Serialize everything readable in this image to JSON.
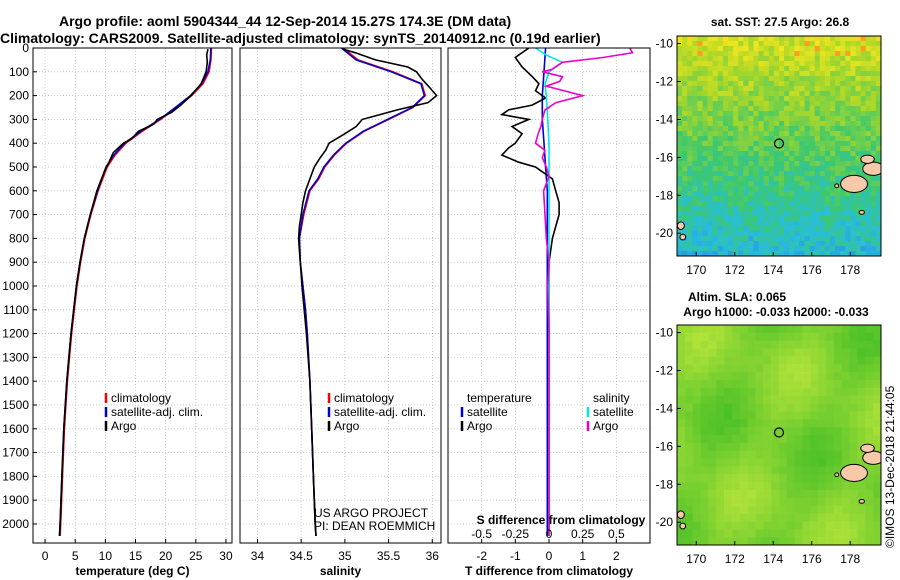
{
  "header": {
    "line1": "Argo profile: aoml 5904344_44 12-Sep-2014 15.27S 174.3E (DM data)",
    "line2": "Climatology: CARS2009. Satellite-adjusted climatology: synTS_20140912.nc (0.19d earlier)"
  },
  "colors": {
    "climatology": "#ff0000",
    "satellite": "#0000cc",
    "argo": "#000000",
    "salinity_satellite": "#00e5ee",
    "salinity_argo": "#ee00cc",
    "grid": "#b0b0b0"
  },
  "chart_data": [
    {
      "id": "temperature",
      "type": "line",
      "xlabel": "temperature (deg C)",
      "ylabel": "",
      "xlim": [
        -2,
        31
      ],
      "ylim": [
        2080,
        0
      ],
      "xticks": [
        0,
        5,
        10,
        15,
        20,
        25,
        30
      ],
      "yticks": [
        0,
        100,
        200,
        300,
        400,
        500,
        600,
        700,
        800,
        900,
        1000,
        1100,
        1200,
        1300,
        1400,
        1500,
        1600,
        1700,
        1800,
        1900,
        2000
      ],
      "legend": [
        "climatology",
        "satellite-adj. clim.",
        "Argo"
      ],
      "series": [
        {
          "name": "climatology",
          "color": "#ff0000",
          "depth": [
            0,
            50,
            100,
            150,
            200,
            250,
            300,
            350,
            400,
            450,
            500,
            600,
            700,
            800,
            900,
            1000,
            1200,
            1400,
            1600,
            1800,
            2000,
            2050
          ],
          "values": [
            27.6,
            27.5,
            27.2,
            26.2,
            24.3,
            21.8,
            19.2,
            16.1,
            13.4,
            11.6,
            10.3,
            8.8,
            7.6,
            6.6,
            5.9,
            5.3,
            4.4,
            3.7,
            3.2,
            2.9,
            2.6,
            2.5
          ]
        },
        {
          "name": "satellite-adj. clim.",
          "color": "#0000cc",
          "depth": [
            0,
            50,
            100,
            150,
            200,
            250,
            300,
            350,
            400,
            450,
            500,
            600,
            700,
            800,
            900,
            1000,
            1200,
            1400,
            1600,
            1800,
            2000,
            2050
          ],
          "values": [
            27.5,
            27.4,
            27.0,
            26.0,
            24.1,
            21.6,
            19.0,
            15.9,
            13.2,
            11.4,
            10.1,
            8.7,
            7.5,
            6.5,
            5.8,
            5.2,
            4.3,
            3.6,
            3.1,
            2.8,
            2.5,
            2.4
          ]
        },
        {
          "name": "Argo",
          "color": "#000000",
          "depth": [
            5,
            30,
            60,
            100,
            150,
            200,
            240,
            270,
            300,
            320,
            350,
            380,
            400,
            440,
            480,
            520,
            600,
            700,
            800,
            900,
            1000,
            1200,
            1400,
            1600,
            1800,
            2000,
            2050
          ],
          "values": [
            27.0,
            26.8,
            26.9,
            26.7,
            25.9,
            24.2,
            22.5,
            21.0,
            18.6,
            18.0,
            15.5,
            14.4,
            13.0,
            11.3,
            10.6,
            9.8,
            8.6,
            7.5,
            6.5,
            5.8,
            5.2,
            4.3,
            3.6,
            3.1,
            2.8,
            2.5,
            2.4
          ]
        }
      ]
    },
    {
      "id": "salinity",
      "type": "line",
      "xlabel": "salinity",
      "ylabel": "",
      "xlim": [
        33.8,
        36.1
      ],
      "ylim": [
        2080,
        0
      ],
      "xticks": [
        34,
        34.5,
        35,
        35.5,
        36
      ],
      "xticklabels": [
        "34",
        "34.5",
        "35",
        "35.5",
        "36"
      ],
      "legend": [
        "climatology",
        "satellite-adj. clim.",
        "Argo"
      ],
      "annotation": [
        "US ARGO PROJECT",
        "PI: DEAN ROEMMICH"
      ],
      "series": [
        {
          "name": "climatology",
          "color": "#ff0000",
          "depth": [
            0,
            50,
            100,
            150,
            200,
            250,
            300,
            350,
            400,
            450,
            500,
            550,
            600,
            700,
            800,
            900,
            1000,
            1100,
            1200,
            1400,
            1600,
            1800,
            2000,
            2050
          ],
          "values": [
            34.98,
            35.15,
            35.55,
            35.88,
            35.92,
            35.78,
            35.5,
            35.22,
            35.02,
            34.88,
            34.77,
            34.7,
            34.6,
            34.53,
            34.48,
            34.49,
            34.52,
            34.55,
            34.57,
            34.6,
            34.62,
            34.64,
            34.66,
            34.67
          ]
        },
        {
          "name": "satellite-adj. clim.",
          "color": "#0000cc",
          "depth": [
            0,
            50,
            100,
            150,
            200,
            250,
            300,
            350,
            400,
            450,
            500,
            550,
            600,
            700,
            800,
            900,
            1000,
            1100,
            1200,
            1400,
            1600,
            1800,
            2000,
            2050
          ],
          "values": [
            34.96,
            35.13,
            35.53,
            35.87,
            35.91,
            35.77,
            35.49,
            35.21,
            35.01,
            34.87,
            34.76,
            34.69,
            34.59,
            34.52,
            34.48,
            34.49,
            34.52,
            34.55,
            34.57,
            34.6,
            34.62,
            34.64,
            34.66,
            34.67
          ]
        },
        {
          "name": "Argo",
          "color": "#000000",
          "depth": [
            5,
            20,
            50,
            80,
            100,
            130,
            170,
            200,
            230,
            260,
            300,
            330,
            360,
            400,
            430,
            460,
            500,
            550,
            600,
            650,
            700,
            750,
            800,
            850,
            900,
            1000,
            1200,
            1400,
            1600,
            1800,
            2000,
            2050
          ],
          "values": [
            34.98,
            35.12,
            35.35,
            35.72,
            35.82,
            35.88,
            35.98,
            36.05,
            35.95,
            35.6,
            35.2,
            35.13,
            35.0,
            34.82,
            34.78,
            34.72,
            34.65,
            34.6,
            34.55,
            34.52,
            34.5,
            34.48,
            34.47,
            34.48,
            34.49,
            34.51,
            34.56,
            34.6,
            34.62,
            34.64,
            34.66,
            34.67
          ]
        }
      ]
    },
    {
      "id": "difference",
      "type": "line",
      "xlabel": "T difference from climatology",
      "x2label": "S difference from climatology",
      "ylabel": "",
      "xlim": [
        -3,
        3
      ],
      "x2lim": [
        -0.75,
        0.75
      ],
      "ylim": [
        2080,
        0
      ],
      "xticks": [
        -2,
        -1,
        0,
        1,
        2
      ],
      "x2ticks": [
        -0.5,
        -0.25,
        0,
        0.25,
        0.5
      ],
      "x2ticklabels": [
        "-0.5",
        "-0.25",
        "0",
        "0.25",
        "0.5"
      ],
      "legend_temperature_title": "temperature",
      "legend_salinity_title": "salinity",
      "legend_temperature": [
        "satellite",
        "Argo"
      ],
      "legend_salinity": [
        "satellite",
        "Argo"
      ],
      "series": [
        {
          "name": "temperature satellite",
          "axis": "x",
          "color": "#0000cc",
          "depth": [
            0,
            100,
            200,
            300,
            400,
            500,
            600,
            800,
            1000,
            1500,
            2050
          ],
          "values": [
            -0.1,
            -0.15,
            -0.2,
            -0.2,
            -0.15,
            -0.1,
            -0.05,
            -0.05,
            -0.05,
            -0.05,
            -0.05
          ]
        },
        {
          "name": "temperature Argo",
          "axis": "x",
          "color": "#000000",
          "depth": [
            0,
            40,
            80,
            120,
            150,
            180,
            210,
            240,
            260,
            280,
            300,
            330,
            360,
            400,
            420,
            450,
            480,
            500,
            520,
            550,
            600,
            650,
            700,
            750,
            800,
            900,
            1000,
            1200,
            1500,
            2050
          ],
          "values": [
            -0.6,
            -1.0,
            -0.8,
            -0.5,
            -0.3,
            -0.4,
            -0.1,
            -0.5,
            -1.2,
            -1.4,
            -0.6,
            -1.1,
            -0.8,
            -1.0,
            -1.2,
            -1.4,
            -0.9,
            -0.4,
            -0.2,
            0.1,
            0.2,
            0.3,
            0.3,
            0.2,
            0.1,
            0.0,
            0.0,
            0.0,
            0.0,
            0.0
          ]
        },
        {
          "name": "salinity satellite",
          "axis": "x2",
          "color": "#00e5ee",
          "depth": [
            0,
            30,
            60,
            100,
            150,
            200,
            300,
            400,
            600,
            800,
            1000,
            1500,
            2050
          ],
          "values": [
            -0.1,
            -0.02,
            0.1,
            0.0,
            -0.03,
            -0.02,
            -0.01,
            0.0,
            0.0,
            0.0,
            0.0,
            0.0,
            0.0
          ]
        },
        {
          "name": "salinity Argo",
          "axis": "x2",
          "color": "#ee00cc",
          "depth": [
            0,
            20,
            40,
            60,
            90,
            100,
            120,
            140,
            160,
            200,
            230,
            260,
            300,
            330,
            360,
            400,
            430,
            460,
            500,
            540,
            600,
            700,
            800,
            900,
            1000,
            1200,
            1500,
            1800,
            2050
          ],
          "values": [
            0.6,
            0.62,
            0.4,
            0.1,
            0.02,
            -0.05,
            0.1,
            0.08,
            -0.02,
            0.25,
            0.05,
            -0.03,
            -0.05,
            -0.06,
            -0.08,
            -0.1,
            -0.03,
            -0.05,
            -0.02,
            0.0,
            -0.04,
            -0.03,
            -0.02,
            0.0,
            -0.01,
            0.0,
            0.0,
            0.0,
            0.0
          ]
        }
      ]
    },
    {
      "id": "sst-map",
      "type": "heatmap",
      "title": "sat. SST: 27.5 Argo: 26.8",
      "xlim": [
        169,
        179.6
      ],
      "ylim": [
        -21.2,
        -9.6
      ],
      "xticks": [
        170,
        172,
        174,
        176,
        178
      ],
      "yticks": [
        -10,
        -12,
        -14,
        -16,
        -18,
        -20
      ],
      "marker": {
        "lon": 174.3,
        "lat": -15.27
      }
    },
    {
      "id": "sla-map",
      "type": "heatmap",
      "title": "Altim. SLA: 0.065",
      "subtitle": "Argo h1000: -0.033 h2000: -0.033",
      "xlim": [
        169,
        179.6
      ],
      "ylim": [
        -21.2,
        -9.6
      ],
      "xticks": [
        170,
        172,
        174,
        176,
        178
      ],
      "yticks": [
        -10,
        -12,
        -14,
        -16,
        -18,
        -20
      ],
      "marker": {
        "lon": 174.3,
        "lat": -15.27
      }
    }
  ],
  "footer": {
    "stamp": "©IMOS 13-Dec-2018 21:44:05"
  }
}
